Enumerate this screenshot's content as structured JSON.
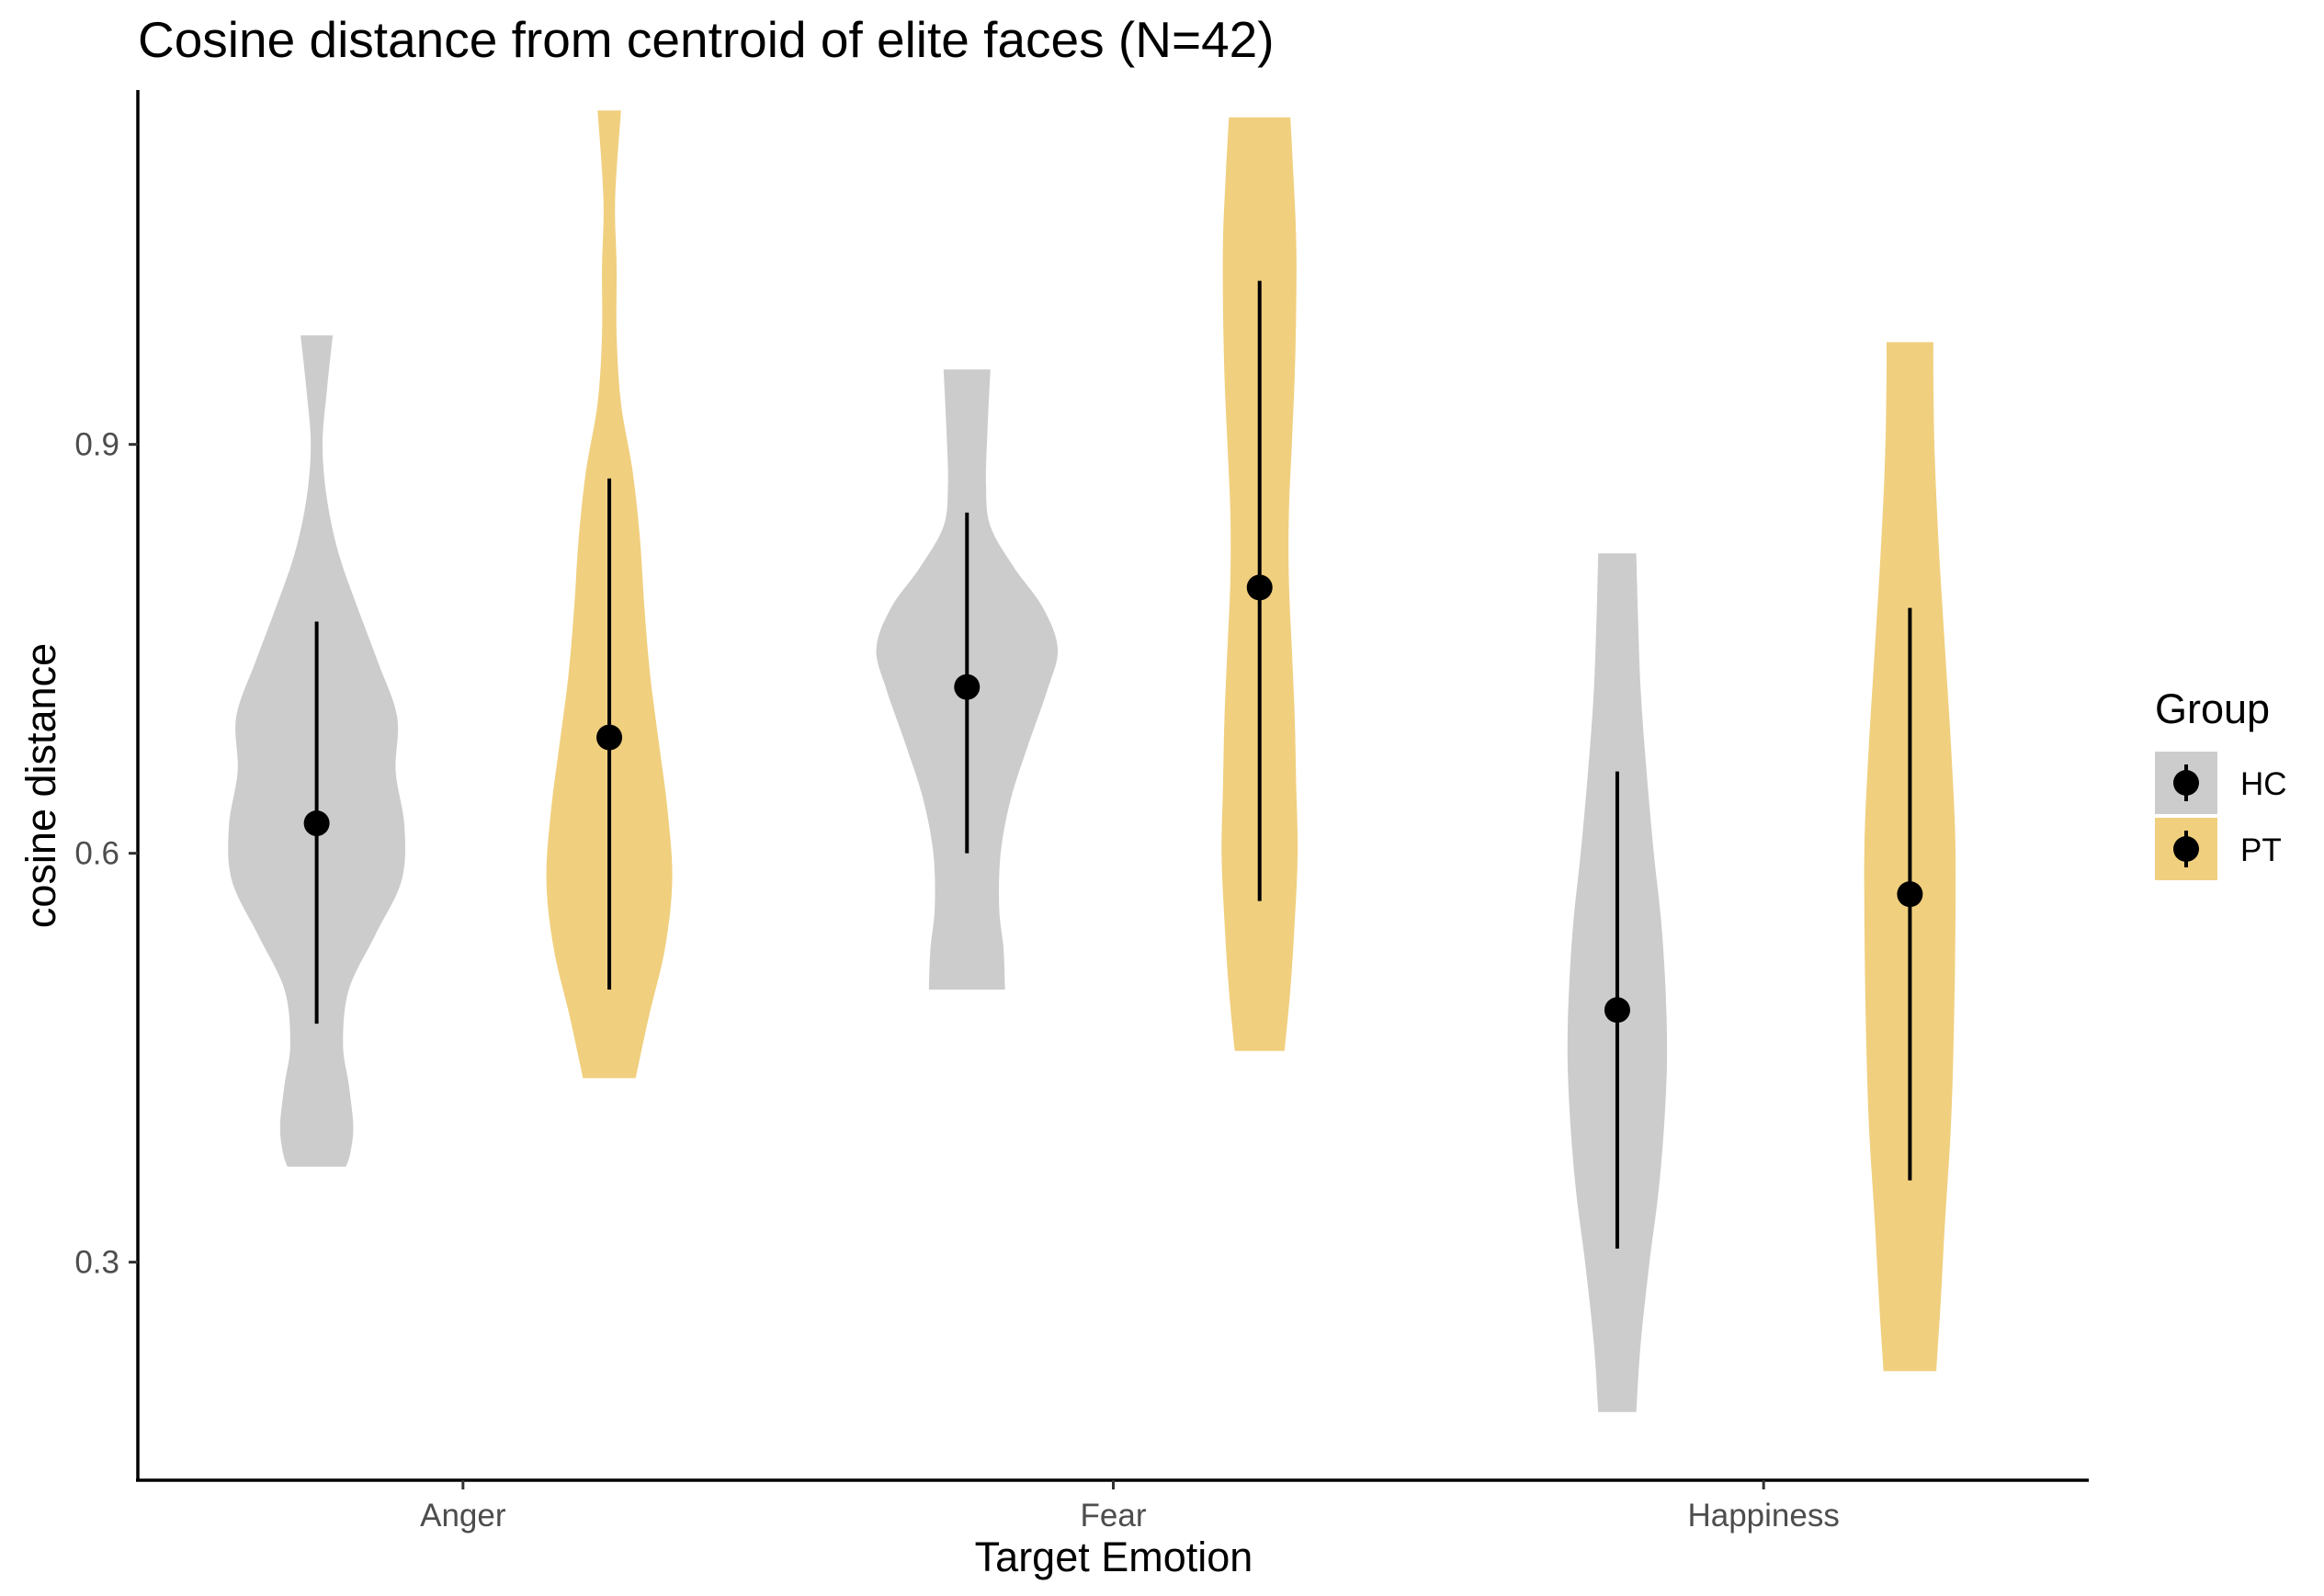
{
  "chart_data": {
    "type": "violin",
    "title": "Cosine distance from centroid of elite faces (N=42)",
    "xlabel": "Target Emotion",
    "ylabel": "cosine distance",
    "categories": [
      "Anger",
      "Fear",
      "Happiness"
    ],
    "yticks": [
      0.3,
      0.6,
      0.9
    ],
    "ylim": [
      0.14,
      1.16
    ],
    "grid": false,
    "legend": {
      "title": "Group",
      "placement": "right",
      "items": [
        {
          "label": "HC",
          "color": "#cccccc"
        },
        {
          "label": "PT",
          "color": "#f0cf7e"
        }
      ]
    },
    "series": [
      {
        "name": "HC",
        "color": "#cccccc",
        "violins": [
          {
            "category": "Anger",
            "min": 0.37,
            "max": 0.98,
            "mean": 0.622,
            "lower": 0.475,
            "upper": 0.77,
            "density": [
              [
                0.37,
                0.2
              ],
              [
                0.38,
                0.23
              ],
              [
                0.4,
                0.25
              ],
              [
                0.43,
                0.22
              ],
              [
                0.46,
                0.18
              ],
              [
                0.5,
                0.22
              ],
              [
                0.54,
                0.4
              ],
              [
                0.58,
                0.58
              ],
              [
                0.62,
                0.6
              ],
              [
                0.66,
                0.54
              ],
              [
                0.7,
                0.55
              ],
              [
                0.74,
                0.42
              ],
              [
                0.78,
                0.28
              ],
              [
                0.82,
                0.15
              ],
              [
                0.86,
                0.07
              ],
              [
                0.9,
                0.04
              ],
              [
                0.94,
                0.07
              ],
              [
                0.98,
                0.11
              ]
            ]
          },
          {
            "category": "Fear",
            "min": 0.5,
            "max": 0.955,
            "mean": 0.722,
            "lower": 0.6,
            "upper": 0.85,
            "density": [
              [
                0.5,
                0.26
              ],
              [
                0.53,
                0.25
              ],
              [
                0.56,
                0.22
              ],
              [
                0.6,
                0.23
              ],
              [
                0.64,
                0.3
              ],
              [
                0.68,
                0.42
              ],
              [
                0.72,
                0.55
              ],
              [
                0.75,
                0.62
              ],
              [
                0.78,
                0.52
              ],
              [
                0.81,
                0.32
              ],
              [
                0.84,
                0.16
              ],
              [
                0.87,
                0.13
              ],
              [
                0.91,
                0.14
              ],
              [
                0.955,
                0.16
              ]
            ]
          },
          {
            "category": "Happiness",
            "min": 0.19,
            "max": 0.82,
            "mean": 0.485,
            "lower": 0.31,
            "upper": 0.66,
            "density": [
              [
                0.19,
                0.13
              ],
              [
                0.24,
                0.16
              ],
              [
                0.3,
                0.22
              ],
              [
                0.35,
                0.28
              ],
              [
                0.4,
                0.32
              ],
              [
                0.45,
                0.34
              ],
              [
                0.5,
                0.33
              ],
              [
                0.55,
                0.3
              ],
              [
                0.6,
                0.25
              ],
              [
                0.66,
                0.2
              ],
              [
                0.72,
                0.16
              ],
              [
                0.78,
                0.14
              ],
              [
                0.82,
                0.13
              ]
            ]
          }
        ]
      },
      {
        "name": "PT",
        "color": "#f0cf7e",
        "violins": [
          {
            "category": "Anger",
            "min": 0.435,
            "max": 1.145,
            "mean": 0.685,
            "lower": 0.5,
            "upper": 0.875,
            "density": [
              [
                0.435,
                0.18
              ],
              [
                0.48,
                0.27
              ],
              [
                0.53,
                0.38
              ],
              [
                0.58,
                0.43
              ],
              [
                0.63,
                0.4
              ],
              [
                0.68,
                0.34
              ],
              [
                0.73,
                0.28
              ],
              [
                0.78,
                0.24
              ],
              [
                0.83,
                0.21
              ],
              [
                0.88,
                0.16
              ],
              [
                0.93,
                0.08
              ],
              [
                0.98,
                0.05
              ],
              [
                1.03,
                0.05
              ],
              [
                1.08,
                0.04
              ],
              [
                1.145,
                0.08
              ]
            ]
          },
          {
            "category": "Fear",
            "min": 0.455,
            "max": 1.14,
            "mean": 0.795,
            "lower": 0.565,
            "upper": 1.02,
            "density": [
              [
                0.455,
                0.17
              ],
              [
                0.5,
                0.21
              ],
              [
                0.55,
                0.24
              ],
              [
                0.6,
                0.26
              ],
              [
                0.65,
                0.25
              ],
              [
                0.7,
                0.24
              ],
              [
                0.75,
                0.22
              ],
              [
                0.8,
                0.2
              ],
              [
                0.85,
                0.2
              ],
              [
                0.9,
                0.22
              ],
              [
                0.95,
                0.24
              ],
              [
                1.0,
                0.25
              ],
              [
                1.05,
                0.25
              ],
              [
                1.1,
                0.23
              ],
              [
                1.14,
                0.21
              ]
            ]
          },
          {
            "category": "Happiness",
            "min": 0.22,
            "max": 0.975,
            "mean": 0.57,
            "lower": 0.36,
            "upper": 0.78,
            "density": [
              [
                0.22,
                0.18
              ],
              [
                0.27,
                0.21
              ],
              [
                0.33,
                0.24
              ],
              [
                0.4,
                0.28
              ],
              [
                0.47,
                0.3
              ],
              [
                0.54,
                0.31
              ],
              [
                0.61,
                0.31
              ],
              [
                0.68,
                0.28
              ],
              [
                0.75,
                0.24
              ],
              [
                0.82,
                0.2
              ],
              [
                0.89,
                0.17
              ],
              [
                0.95,
                0.16
              ],
              [
                0.975,
                0.16
              ]
            ]
          }
        ]
      }
    ]
  }
}
